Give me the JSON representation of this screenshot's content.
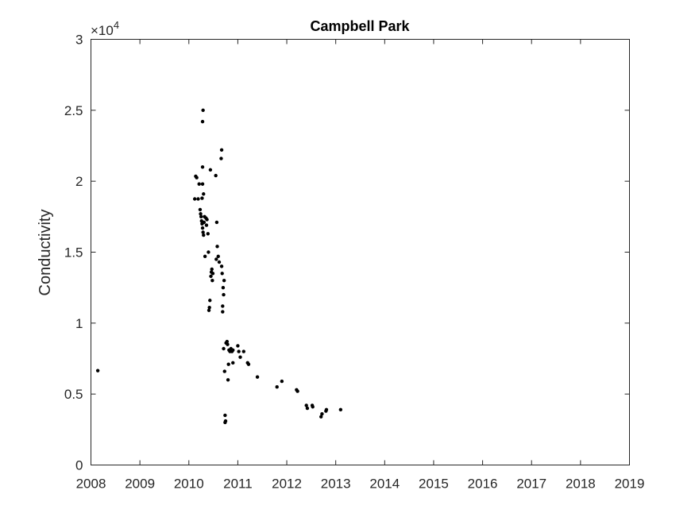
{
  "chart_data": {
    "type": "scatter",
    "title": "Campbell Park",
    "xlabel": "",
    "ylabel": "Conductivity",
    "y_exponent_label": "×10",
    "y_exponent": "4",
    "xlim": [
      2008,
      2019
    ],
    "ylim": [
      0,
      3
    ],
    "x_ticks": [
      "2008",
      "2009",
      "2010",
      "2011",
      "2012",
      "2013",
      "2014",
      "2015",
      "2016",
      "2017",
      "2018",
      "2019"
    ],
    "y_ticks": [
      "0",
      "0.5",
      "1",
      "1.5",
      "2",
      "2.5",
      "3"
    ],
    "grid": false,
    "marker_color": "#000000",
    "points": [
      [
        2008.14,
        0.665
      ],
      [
        2010.12,
        1.875
      ],
      [
        2010.14,
        2.035
      ],
      [
        2010.16,
        2.025
      ],
      [
        2010.19,
        1.875
      ],
      [
        2010.21,
        1.98
      ],
      [
        2010.23,
        1.8
      ],
      [
        2010.24,
        1.77
      ],
      [
        2010.25,
        1.75
      ],
      [
        2010.26,
        1.72
      ],
      [
        2010.27,
        1.7
      ],
      [
        2010.27,
        1.88
      ],
      [
        2010.28,
        1.98
      ],
      [
        2010.28,
        2.1
      ],
      [
        2010.28,
        2.42
      ],
      [
        2010.29,
        2.5
      ],
      [
        2010.28,
        1.67
      ],
      [
        2010.29,
        1.64
      ],
      [
        2010.3,
        1.62
      ],
      [
        2010.3,
        1.91
      ],
      [
        2010.31,
        1.71
      ],
      [
        2010.32,
        1.75
      ],
      [
        2010.33,
        1.47
      ],
      [
        2010.35,
        1.74
      ],
      [
        2010.36,
        1.69
      ],
      [
        2010.37,
        1.73
      ],
      [
        2010.39,
        1.63
      ],
      [
        2010.4,
        1.5
      ],
      [
        2010.41,
        1.09
      ],
      [
        2010.42,
        1.11
      ],
      [
        2010.43,
        1.16
      ],
      [
        2010.44,
        2.08
      ],
      [
        2010.45,
        1.33
      ],
      [
        2010.46,
        1.36
      ],
      [
        2010.47,
        1.38
      ],
      [
        2010.48,
        1.3
      ],
      [
        2010.49,
        1.35
      ],
      [
        2010.55,
        2.04
      ],
      [
        2010.56,
        1.45
      ],
      [
        2010.57,
        1.71
      ],
      [
        2010.58,
        1.54
      ],
      [
        2010.6,
        1.47
      ],
      [
        2010.62,
        1.43
      ],
      [
        2010.66,
        2.16
      ],
      [
        2010.67,
        2.22
      ],
      [
        2010.67,
        1.4
      ],
      [
        2010.68,
        1.35
      ],
      [
        2010.69,
        1.12
      ],
      [
        2010.69,
        1.08
      ],
      [
        2010.7,
        1.25
      ],
      [
        2010.71,
        1.2
      ],
      [
        2010.72,
        1.3
      ],
      [
        2010.71,
        0.82
      ],
      [
        2010.73,
        0.66
      ],
      [
        2010.74,
        0.3
      ],
      [
        2010.75,
        0.31
      ],
      [
        2010.74,
        0.35
      ],
      [
        2010.76,
        0.86
      ],
      [
        2010.78,
        0.87
      ],
      [
        2010.79,
        0.85
      ],
      [
        2010.8,
        0.6
      ],
      [
        2010.81,
        0.71
      ],
      [
        2010.82,
        0.81
      ],
      [
        2010.84,
        0.8
      ],
      [
        2010.86,
        0.82
      ],
      [
        2010.88,
        0.8
      ],
      [
        2010.9,
        0.81
      ],
      [
        2010.9,
        0.72
      ],
      [
        2011.0,
        0.84
      ],
      [
        2011.02,
        0.8
      ],
      [
        2011.05,
        0.76
      ],
      [
        2011.12,
        0.8
      ],
      [
        2011.2,
        0.72
      ],
      [
        2011.22,
        0.71
      ],
      [
        2011.4,
        0.62
      ],
      [
        2011.8,
        0.55
      ],
      [
        2011.9,
        0.59
      ],
      [
        2012.2,
        0.53
      ],
      [
        2012.22,
        0.52
      ],
      [
        2012.4,
        0.42
      ],
      [
        2012.42,
        0.4
      ],
      [
        2012.52,
        0.42
      ],
      [
        2012.53,
        0.41
      ],
      [
        2012.7,
        0.34
      ],
      [
        2012.72,
        0.36
      ],
      [
        2012.8,
        0.38
      ],
      [
        2012.81,
        0.39
      ],
      [
        2013.1,
        0.39
      ]
    ]
  }
}
